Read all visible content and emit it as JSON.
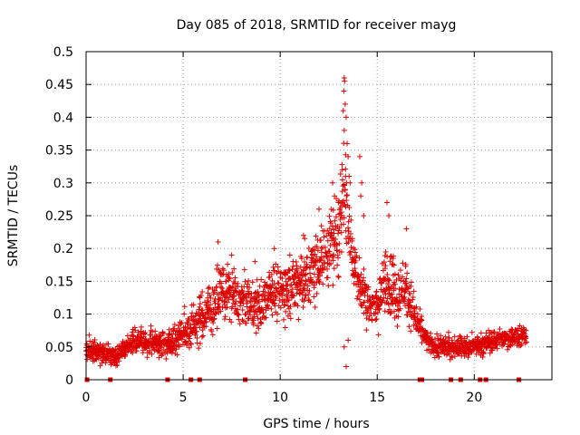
{
  "chart_data": {
    "type": "scatter",
    "title": "Day 085 of 2018, SRMTID for receiver mayg",
    "xlabel": "GPS time / hours",
    "ylabel": "SRMTID / TECUs",
    "xlim": [
      0,
      24
    ],
    "ylim": [
      0,
      0.5
    ],
    "xticks": [
      0,
      5,
      10,
      15,
      20
    ],
    "xtick_labels": [
      "0",
      "5",
      "10",
      "15",
      "20"
    ],
    "yticks": [
      0,
      0.05,
      0.1,
      0.15,
      0.2,
      0.25,
      0.3,
      0.35,
      0.4,
      0.45,
      0.5
    ],
    "ytick_labels": [
      "0",
      "0.05",
      "0.1",
      "0.15",
      "0.2",
      "0.25",
      "0.3",
      "0.35",
      "0.4",
      "0.45",
      "0.5"
    ],
    "grid": true,
    "marker": "+",
    "series_color": "#dd0000",
    "envelope": {
      "description": "approximate mean trend and spread of the SRMTID points vs GPS hour",
      "hours": [
        0.0,
        1.0,
        1.5,
        2.5,
        3.5,
        4.5,
        5.5,
        6.5,
        7.0,
        8.0,
        9.0,
        9.5,
        10.0,
        11.0,
        11.5,
        12.0,
        12.5,
        13.0,
        13.3,
        13.6,
        14.0,
        14.5,
        15.0,
        15.5,
        16.0,
        16.5,
        17.0,
        17.5,
        18.0,
        19.0,
        20.0,
        21.0,
        22.0,
        22.7
      ],
      "mean": [
        0.045,
        0.04,
        0.035,
        0.06,
        0.055,
        0.06,
        0.08,
        0.11,
        0.14,
        0.12,
        0.11,
        0.14,
        0.13,
        0.15,
        0.16,
        0.18,
        0.2,
        0.22,
        0.3,
        0.22,
        0.15,
        0.12,
        0.11,
        0.16,
        0.13,
        0.14,
        0.09,
        0.06,
        0.05,
        0.05,
        0.05,
        0.06,
        0.065,
        0.07
      ],
      "spread": [
        0.015,
        0.015,
        0.012,
        0.018,
        0.018,
        0.022,
        0.03,
        0.04,
        0.04,
        0.035,
        0.035,
        0.04,
        0.04,
        0.04,
        0.045,
        0.05,
        0.05,
        0.05,
        0.08,
        0.05,
        0.04,
        0.035,
        0.035,
        0.05,
        0.04,
        0.04,
        0.025,
        0.015,
        0.015,
        0.015,
        0.015,
        0.015,
        0.015,
        0.02
      ]
    },
    "highlights": [
      {
        "x": 13.3,
        "y": 0.46
      },
      {
        "x": 13.32,
        "y": 0.455
      },
      {
        "x": 13.28,
        "y": 0.44
      },
      {
        "x": 13.35,
        "y": 0.42
      },
      {
        "x": 13.4,
        "y": 0.4
      },
      {
        "x": 13.25,
        "y": 0.41
      },
      {
        "x": 13.3,
        "y": 0.38
      },
      {
        "x": 13.45,
        "y": 0.36
      },
      {
        "x": 13.5,
        "y": 0.34
      },
      {
        "x": 13.2,
        "y": 0.32
      },
      {
        "x": 13.55,
        "y": 0.31
      },
      {
        "x": 13.6,
        "y": 0.3
      },
      {
        "x": 14.1,
        "y": 0.34
      },
      {
        "x": 14.2,
        "y": 0.3
      },
      {
        "x": 14.15,
        "y": 0.28
      },
      {
        "x": 13.0,
        "y": 0.27
      },
      {
        "x": 12.7,
        "y": 0.3
      },
      {
        "x": 12.8,
        "y": 0.28
      },
      {
        "x": 15.5,
        "y": 0.27
      },
      {
        "x": 15.6,
        "y": 0.25
      },
      {
        "x": 16.5,
        "y": 0.23
      },
      {
        "x": 14.3,
        "y": 0.25
      },
      {
        "x": 12.0,
        "y": 0.26
      },
      {
        "x": 11.2,
        "y": 0.22
      },
      {
        "x": 9.7,
        "y": 0.2
      },
      {
        "x": 6.8,
        "y": 0.21
      },
      {
        "x": 7.5,
        "y": 0.19
      },
      {
        "x": 8.7,
        "y": 0.18
      },
      {
        "x": 10.5,
        "y": 0.19
      },
      {
        "x": 13.4,
        "y": 0.02
      },
      {
        "x": 13.3,
        "y": 0.05
      },
      {
        "x": 13.5,
        "y": 0.06
      }
    ],
    "gap_markers_hours": [
      0.05,
      1.25,
      4.2,
      5.4,
      5.85,
      8.2,
      17.2,
      17.3,
      18.8,
      19.3,
      20.3,
      20.6,
      22.3
    ]
  }
}
